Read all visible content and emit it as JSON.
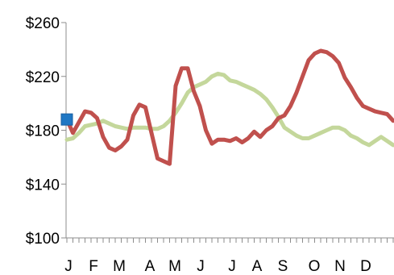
{
  "chart_data": {
    "type": "line",
    "title": "",
    "xlabel": "",
    "ylabel": "",
    "ylim": [
      100,
      260
    ],
    "yticks": [
      {
        "value": 100,
        "label": "$100"
      },
      {
        "value": 140,
        "label": "$140"
      },
      {
        "value": 180,
        "label": "$180"
      },
      {
        "value": 220,
        "label": "$220"
      },
      {
        "value": 260,
        "label": "$260"
      }
    ],
    "months": [
      "J",
      "F",
      "M",
      "A",
      "M",
      "J",
      "J",
      "A",
      "S",
      "O",
      "N",
      "D"
    ],
    "grid": false,
    "legend": "none",
    "series": [
      {
        "color": "#c0504d",
        "values": [
          188,
          178,
          186,
          194,
          193,
          189,
          175,
          167,
          165,
          168,
          173,
          191,
          199,
          197,
          178,
          159,
          157,
          155,
          213,
          226,
          226,
          209,
          198,
          180,
          170,
          173,
          173,
          172,
          174,
          171,
          174,
          179,
          175,
          180,
          183,
          189,
          191,
          198,
          208,
          220,
          232,
          237,
          239,
          238,
          235,
          230,
          219,
          212,
          204,
          198,
          196,
          194,
          193,
          192,
          187
        ]
      },
      {
        "color": "#c4d79b",
        "values": [
          173,
          174,
          178,
          183,
          184,
          185,
          187,
          185,
          183,
          182,
          181,
          182,
          182,
          182,
          181,
          181,
          183,
          187,
          193,
          200,
          208,
          212,
          214,
          216,
          220,
          222,
          221,
          217,
          216,
          214,
          212,
          210,
          207,
          203,
          197,
          190,
          182,
          179,
          176,
          174,
          174,
          176,
          178,
          180,
          182,
          182,
          180,
          176,
          174,
          171,
          169,
          172,
          175,
          172,
          169
        ]
      }
    ],
    "marker": {
      "x": 0,
      "value": 188,
      "color": "#1f77c4"
    }
  }
}
